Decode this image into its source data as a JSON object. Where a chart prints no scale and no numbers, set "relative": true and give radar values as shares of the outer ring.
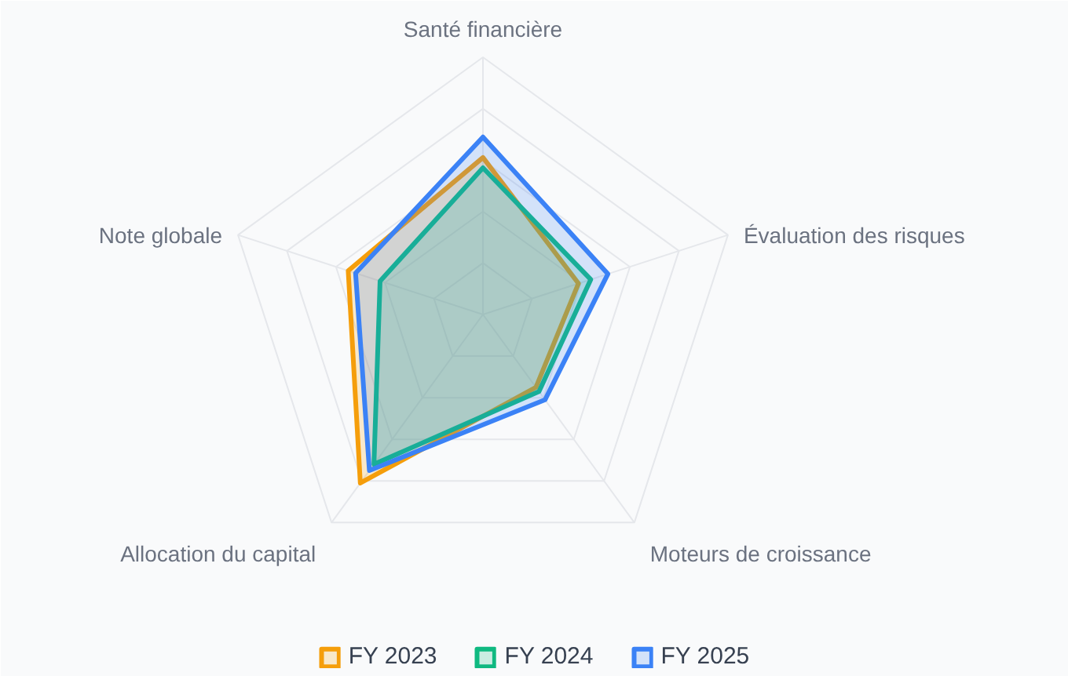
{
  "chart_data": {
    "type": "radar",
    "relative": true,
    "grid": true,
    "legend": "bottom",
    "marker": "none",
    "line_style": "solid",
    "categories": [
      "Santé financière",
      "Évaluation des risques",
      "Moteurs de croissance",
      "Allocation du capital",
      "Note globale"
    ],
    "series": [
      {
        "name": "FY 2023",
        "color": "#f59e0b",
        "values": [
          0.61,
          0.39,
          0.35,
          0.81,
          0.55
        ]
      },
      {
        "name": "FY 2024",
        "color": "#10b981",
        "values": [
          0.57,
          0.44,
          0.37,
          0.72,
          0.42
        ]
      },
      {
        "name": "FY 2025",
        "color": "#3b82f6",
        "values": [
          0.69,
          0.51,
          0.41,
          0.75,
          0.52
        ]
      }
    ]
  }
}
